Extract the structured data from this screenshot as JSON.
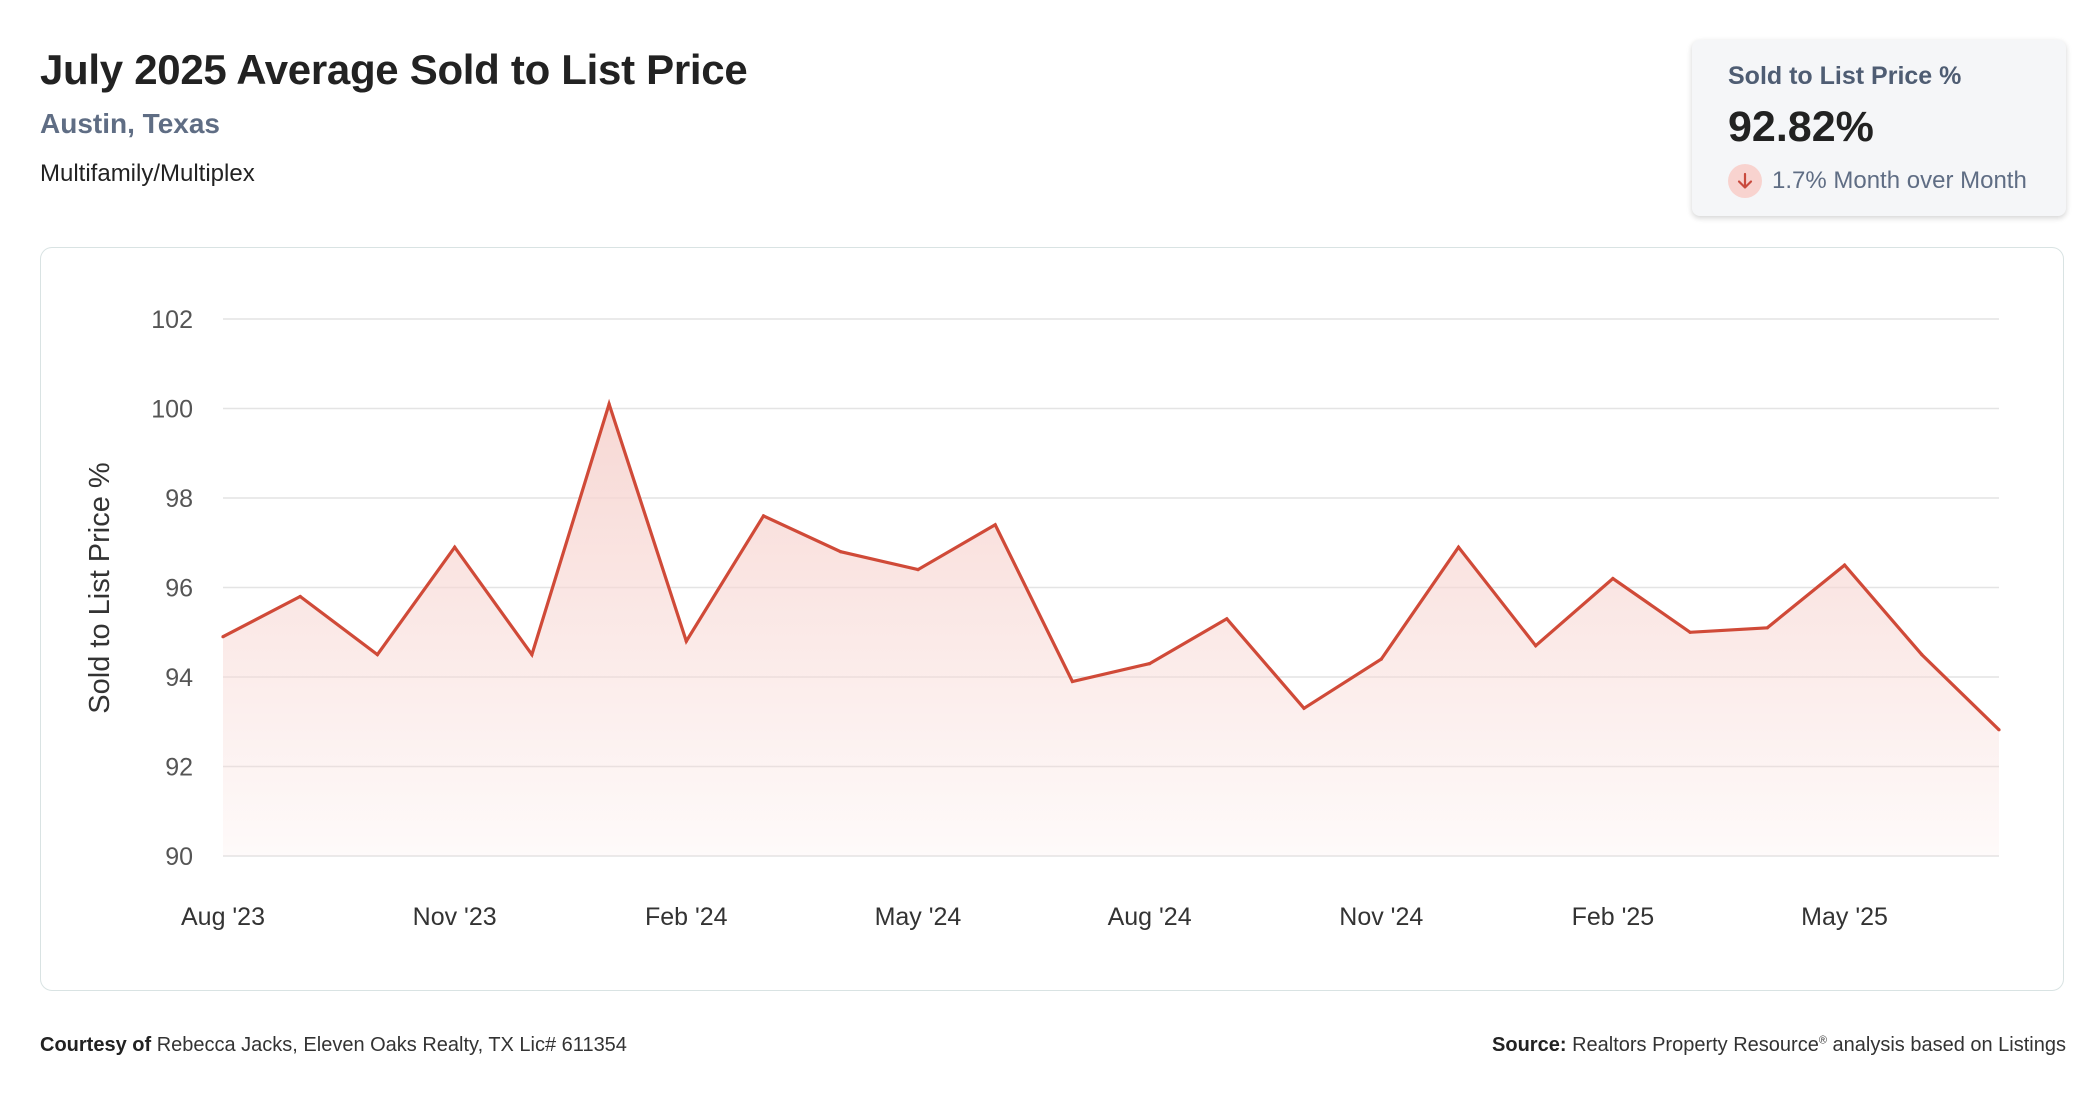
{
  "header": {
    "title": "July 2025 Average Sold to List Price",
    "location": "Austin, Texas",
    "category": "Multifamily/Multiplex"
  },
  "kpi": {
    "label": "Sold to List Price %",
    "value": "92.82%",
    "change_text": "1.7% Month over Month",
    "direction_icon": "arrow-down-icon",
    "change_color": "#c94a3d"
  },
  "footer": {
    "courtesy_label": "Courtesy of",
    "courtesy_text": "Rebecca Jacks, Eleven Oaks Realty, TX Lic# 611354",
    "source_label": "Source:",
    "source_text_pre": "Realtors Property Resource",
    "source_text_sup": "®",
    "source_text_post": "analysis based on Listings"
  },
  "colors": {
    "line": "#d04a38",
    "area_top": "#f7d6d2",
    "grid": "#e4e4e4",
    "accent": "#5f6d84"
  },
  "chart_data": {
    "type": "area",
    "ylabel": "Sold to List Price %",
    "xlabel": "",
    "ylim": [
      90,
      102
    ],
    "yticks": [
      90,
      92,
      94,
      96,
      98,
      100,
      102
    ],
    "x": [
      "Aug '23",
      "Sep '23",
      "Oct '23",
      "Nov '23",
      "Dec '23",
      "Jan '24",
      "Feb '24",
      "Mar '24",
      "Apr '24",
      "May '24",
      "Jun '24",
      "Jul '24",
      "Aug '24",
      "Sep '24",
      "Oct '24",
      "Nov '24",
      "Dec '24",
      "Jan '25",
      "Feb '25",
      "Mar '25",
      "Apr '25",
      "May '25",
      "Jun '25",
      "Jul '25"
    ],
    "xtick_labels": [
      "Aug '23",
      "Nov '23",
      "Feb '24",
      "May '24",
      "Aug '24",
      "Nov '24",
      "Feb '25",
      "May '25"
    ],
    "series": [
      {
        "values": [
          94.9,
          95.8,
          94.5,
          96.9,
          94.5,
          100.1,
          94.8,
          97.6,
          96.8,
          96.4,
          97.4,
          93.9,
          94.3,
          95.3,
          93.3,
          94.4,
          96.9,
          94.7,
          96.2,
          95.0,
          95.1,
          96.5,
          94.5,
          92.82
        ]
      }
    ],
    "grid": true,
    "legend": "none"
  }
}
